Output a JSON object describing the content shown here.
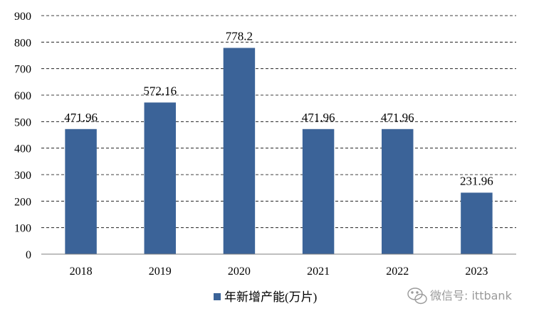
{
  "chart_data": {
    "type": "bar",
    "categories": [
      "2018",
      "2019",
      "2020",
      "2021",
      "2022",
      "2023"
    ],
    "series": [
      {
        "name": "年新增产能(万片)",
        "values": [
          471.96,
          572.16,
          778.2,
          471.96,
          471.96,
          231.96
        ],
        "labels": [
          "471.96",
          "572.16",
          "778.2",
          "471.96",
          "471.96",
          "231.96"
        ]
      }
    ],
    "ylim": [
      0,
      900
    ],
    "yticks": [
      "0",
      "100",
      "200",
      "300",
      "400",
      "500",
      "600",
      "700",
      "800",
      "900"
    ],
    "grid": true,
    "legend_position": "bottom-center",
    "bar_color": "#3b6398"
  },
  "watermark": {
    "text": "微信号: ittbank"
  }
}
